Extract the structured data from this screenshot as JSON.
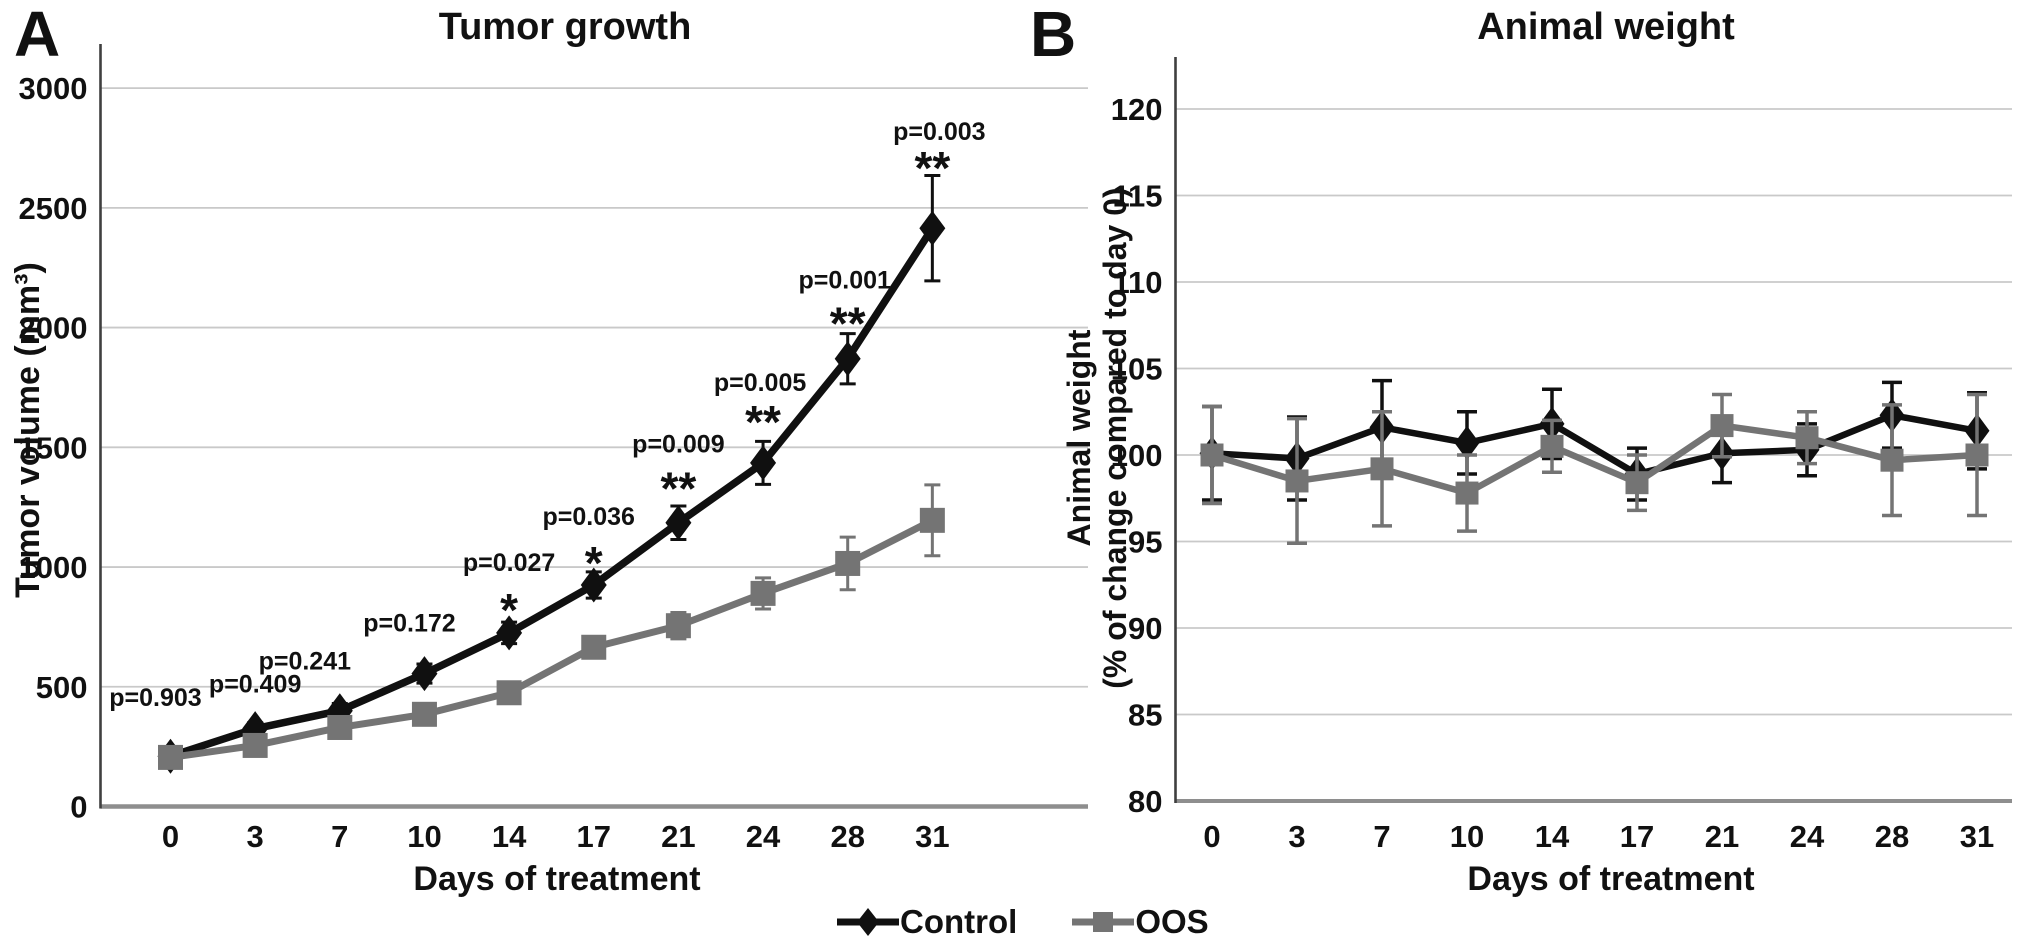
{
  "figure_type": "two-panel preclinical study line figure",
  "colors": {
    "control": "#101010",
    "oos": "#747474",
    "gridline": "#c9c9c9",
    "baseline_axis": "#8e8e8e",
    "y_axis": "#3f3f3f",
    "background": "#ffffff",
    "text": "#111111"
  },
  "legend": {
    "position": "bottom-center",
    "entries": [
      {
        "label": "Control",
        "marker": "diamond-icon",
        "color": "#101010"
      },
      {
        "label": "OOS",
        "marker": "square-icon",
        "color": "#747474"
      }
    ]
  },
  "chart_data": [
    {
      "type": "line",
      "panel_label": "A",
      "title": "Tumor growth",
      "xlabel": "Days of treatment",
      "ylabel": "Tumor volume (mm³)",
      "x_categories": [
        "0",
        "3",
        "7",
        "10",
        "14",
        "17",
        "21",
        "24",
        "28",
        "31"
      ],
      "y_ticks": [
        0,
        500,
        1000,
        1500,
        2000,
        2500,
        3000
      ],
      "ylim": [
        0,
        3150
      ],
      "baseline_value": 0,
      "grid": "horizontal",
      "error_bars": true,
      "series": [
        {
          "name": "Control",
          "marker": "diamond",
          "color": "#101010",
          "values": [
            210,
            325,
            400,
            555,
            725,
            925,
            1185,
            1435,
            1870,
            2415
          ],
          "errors": [
            18,
            25,
            30,
            40,
            45,
            55,
            70,
            90,
            105,
            220
          ]
        },
        {
          "name": "OOS",
          "marker": "square",
          "color": "#747474",
          "values": [
            205,
            255,
            330,
            385,
            475,
            665,
            755,
            890,
            1015,
            1195
          ],
          "errors": [
            18,
            22,
            28,
            38,
            40,
            45,
            55,
            65,
            110,
            148
          ]
        }
      ],
      "annotations": [
        {
          "x": "0",
          "label": "p=0.903",
          "stars": ""
        },
        {
          "x": "3",
          "label": "p=0.409",
          "stars": ""
        },
        {
          "x": "7",
          "label": "p=0.241",
          "stars": ""
        },
        {
          "x": "10",
          "label": "p=0.172",
          "stars": ""
        },
        {
          "x": "14",
          "label": "p=0.027",
          "stars": "*"
        },
        {
          "x": "17",
          "label": "p=0.036",
          "stars": "*"
        },
        {
          "x": "21",
          "label": "p=0.009",
          "stars": "**"
        },
        {
          "x": "24",
          "label": "p=0.005",
          "stars": "**"
        },
        {
          "x": "28",
          "label": "p=0.001",
          "stars": "**"
        },
        {
          "x": "31",
          "label": "p=0.003",
          "stars": "**"
        }
      ]
    },
    {
      "type": "line",
      "panel_label": "B",
      "title": "Animal weight",
      "xlabel": "Days of treatment",
      "ylabel_line1": "Animal weight",
      "ylabel_line2": "(% of change compared to day 0)",
      "x_categories": [
        "0",
        "3",
        "7",
        "10",
        "14",
        "17",
        "21",
        "24",
        "28",
        "31"
      ],
      "y_ticks": [
        80,
        85,
        90,
        95,
        100,
        105,
        110,
        115,
        120
      ],
      "ylim": [
        80,
        123
      ],
      "baseline_value": 80,
      "grid": "horizontal",
      "error_bars": true,
      "series": [
        {
          "name": "Control",
          "marker": "diamond",
          "color": "#101010",
          "values": [
            100.1,
            99.8,
            101.6,
            100.7,
            101.8,
            98.9,
            100.1,
            100.3,
            102.3,
            101.4
          ],
          "errors": [
            2.7,
            2.4,
            2.7,
            1.8,
            2.0,
            1.5,
            1.7,
            1.5,
            1.9,
            2.2
          ]
        },
        {
          "name": "OOS",
          "marker": "square",
          "color": "#747474",
          "values": [
            100.0,
            98.5,
            99.2,
            97.8,
            100.5,
            98.4,
            101.7,
            101.0,
            99.7,
            100.0
          ],
          "errors": [
            2.8,
            3.6,
            3.3,
            2.2,
            1.5,
            1.6,
            1.8,
            1.5,
            3.2,
            3.5
          ]
        }
      ],
      "annotations": []
    }
  ]
}
